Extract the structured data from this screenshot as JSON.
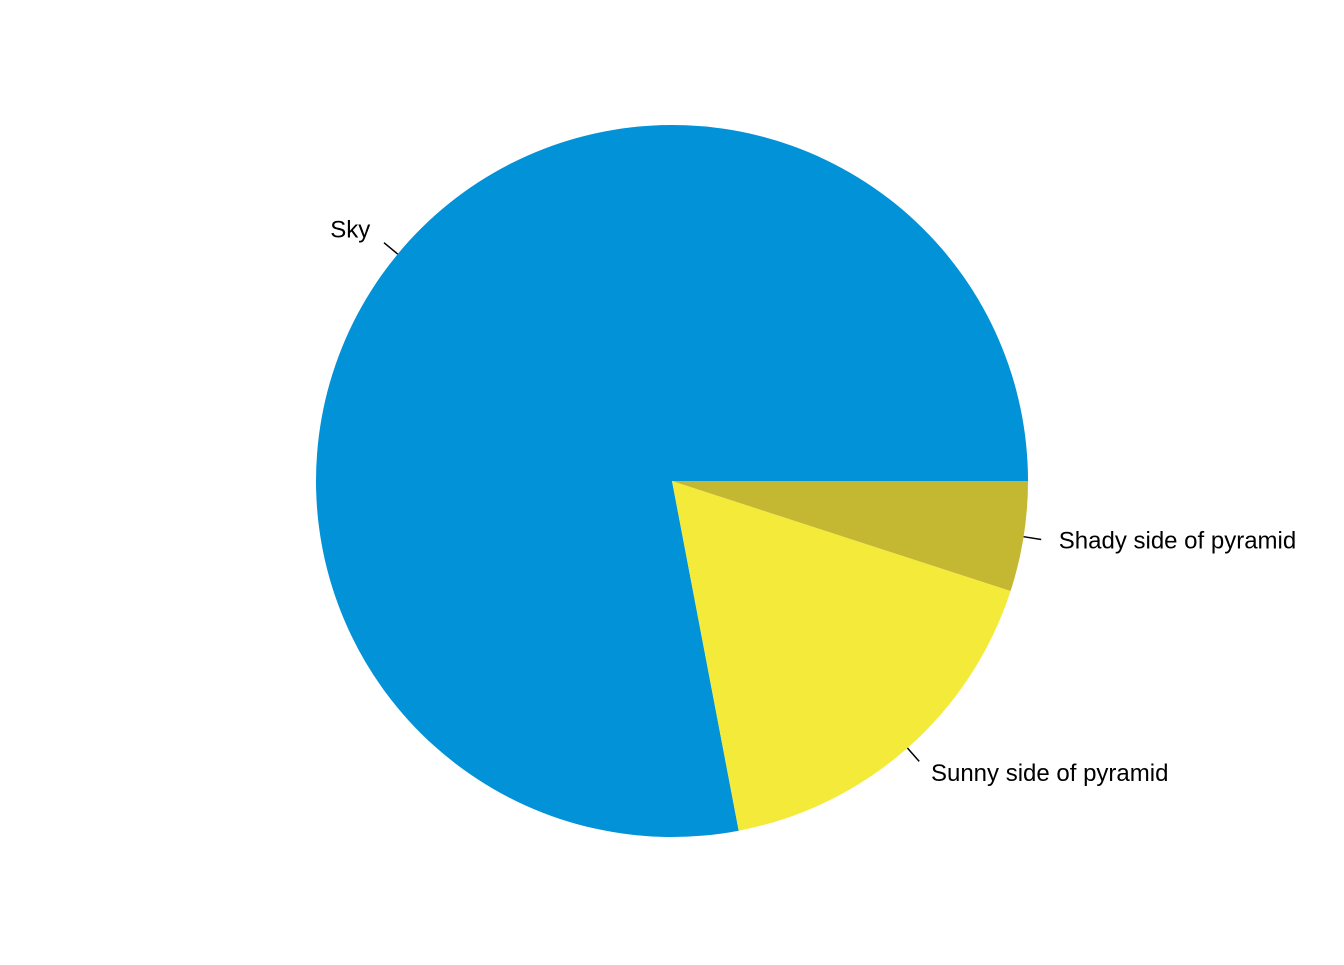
{
  "chart_data": {
    "type": "pie",
    "title": "",
    "start": "counterclockwise from right",
    "slices": [
      {
        "label": "Sky",
        "value": 0.78,
        "color": "#0292D8"
      },
      {
        "label": "Sunny side of pyramid",
        "value": 0.17,
        "color": "#F4EA3A"
      },
      {
        "label": "Shady side of pyramid",
        "value": 0.05,
        "color": "#C4B832"
      }
    ]
  }
}
